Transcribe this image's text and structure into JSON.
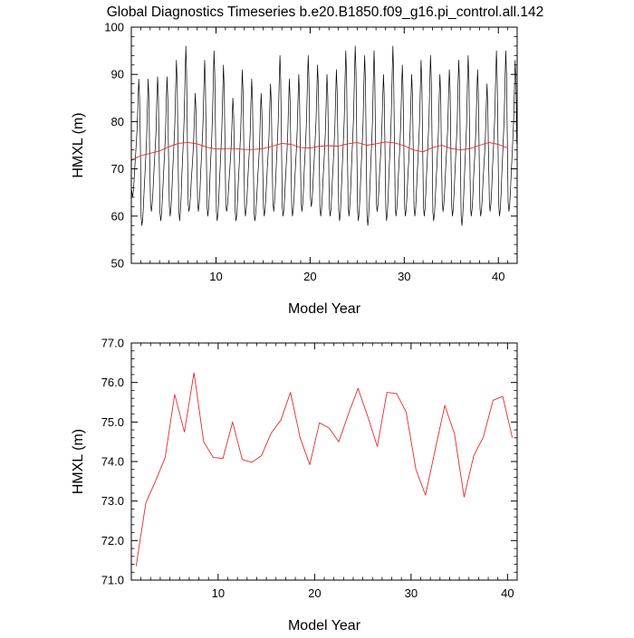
{
  "title": "Global Diagnostics Timeseries b.e20.B1850.f09_g16.pi_control.all.142",
  "chart_data": [
    {
      "type": "line",
      "xlabel": "Model Year",
      "ylabel": "HMXL (m)",
      "xlim": [
        1,
        42
      ],
      "ylim": [
        50,
        100
      ],
      "xticks": [
        10,
        20,
        30,
        40
      ],
      "yticks": [
        50,
        60,
        70,
        80,
        90,
        100
      ],
      "ytick_labels": [
        "50",
        "60",
        "70",
        "80",
        "90",
        "100"
      ],
      "series": [
        {
          "color": "#000000",
          "sampling": "monthly",
          "monthly_climatology": [
            60.5,
            58.5,
            60,
            63,
            67,
            70.5,
            74,
            78,
            85,
            91,
            86,
            73
          ],
          "peaks": [
            89,
            89,
            89.5,
            89.5,
            93,
            96,
            86,
            93,
            95,
            92,
            85,
            91,
            89,
            86,
            88,
            94,
            89,
            90,
            94,
            92,
            90,
            91,
            95,
            96,
            94,
            95,
            90,
            96,
            92,
            90,
            93,
            94,
            90,
            91,
            93,
            94,
            91,
            88,
            95,
            95,
            93
          ],
          "troughs": [
            64,
            58,
            61,
            59,
            60,
            59,
            61,
            61,
            60,
            59,
            61,
            59,
            60,
            59,
            60,
            61,
            60,
            60,
            61,
            62,
            60,
            60,
            59,
            60,
            59,
            58,
            61,
            59,
            60,
            60,
            60,
            60,
            59,
            61,
            60,
            58,
            60,
            60,
            61,
            60,
            61
          ]
        },
        {
          "color": "#e8282b",
          "sampling": "smoothed",
          "x": [
            1,
            2,
            3,
            4,
            5,
            6,
            7,
            8,
            9,
            10,
            11,
            12,
            13,
            14,
            15,
            16,
            17,
            18,
            19,
            20,
            21,
            22,
            23,
            24,
            25,
            26,
            27,
            28,
            29,
            30,
            31,
            32,
            33,
            34,
            35,
            36,
            37,
            38,
            39,
            40,
            41
          ],
          "values": [
            71.8,
            72.8,
            73.3,
            73.8,
            74.7,
            75.4,
            75.6,
            75.3,
            74.6,
            74.2,
            74.3,
            74.3,
            74.1,
            74.1,
            74.3,
            74.8,
            75.4,
            75.2,
            74.5,
            74.4,
            74.8,
            74.9,
            74.8,
            75.3,
            75.6,
            75.0,
            75.3,
            75.7,
            75.5,
            74.9,
            74.0,
            73.6,
            74.5,
            75.0,
            74.3,
            74.0,
            74.3,
            75.0,
            75.6,
            75.2,
            74.4
          ]
        }
      ]
    },
    {
      "type": "line",
      "xlabel": "Model Year",
      "ylabel": "HMXL (m)",
      "xlim": [
        1,
        41
      ],
      "ylim": [
        71,
        77
      ],
      "xticks": [
        10,
        20,
        30,
        40
      ],
      "yticks": [
        71,
        72,
        73,
        74,
        75,
        76,
        77
      ],
      "ytick_labels": [
        "71.0",
        "72.0",
        "73.0",
        "74.0",
        "75.0",
        "76.0",
        "77.0"
      ],
      "series": [
        {
          "color": "#e8282b",
          "x": [
            1.5,
            2.5,
            3.5,
            4.5,
            5.5,
            6.5,
            7.5,
            8.5,
            9.5,
            10.5,
            11.5,
            12.5,
            13.5,
            14.5,
            15.5,
            16.5,
            17.5,
            18.5,
            19.5,
            20.5,
            21.5,
            22.5,
            23.5,
            24.5,
            25.5,
            26.5,
            27.5,
            28.5,
            29.5,
            30.5,
            31.5,
            32.5,
            33.5,
            34.5,
            35.5,
            36.5,
            37.5,
            38.5,
            39.5,
            40.5
          ],
          "values": [
            71.35,
            72.95,
            73.5,
            74.1,
            75.7,
            74.75,
            76.25,
            74.5,
            74.1,
            74.08,
            75.0,
            74.05,
            73.98,
            74.15,
            74.72,
            75.05,
            75.75,
            74.6,
            73.92,
            74.98,
            74.85,
            74.5,
            75.2,
            75.85,
            75.15,
            74.38,
            75.75,
            75.72,
            75.25,
            73.8,
            73.15,
            74.3,
            75.42,
            74.7,
            73.1,
            74.15,
            74.62,
            75.55,
            75.65,
            74.6
          ]
        }
      ]
    }
  ]
}
